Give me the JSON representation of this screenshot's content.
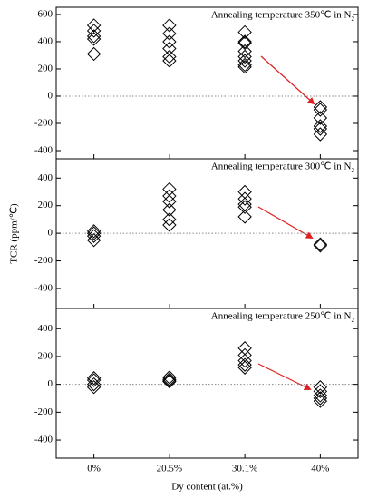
{
  "chart_data": [
    {
      "type": "scatter",
      "annotation": "Annealing temperature 350℃ in N2",
      "values": [
        [
          520,
          480,
          440,
          420,
          310
        ],
        [
          520,
          460,
          400,
          350,
          290,
          260
        ],
        [
          470,
          400,
          390,
          330,
          290,
          260,
          230,
          215
        ],
        [
          -80,
          -100,
          -160,
          -220,
          -240,
          -280
        ]
      ],
      "ylim": [
        -460,
        653
      ],
      "yticks": [
        -400,
        -200,
        0,
        200,
        400,
        600
      ],
      "reference_line": 0
    },
    {
      "type": "scatter",
      "annotation": "Annealing temperature 300℃ in N2",
      "ylabel": "TCR (ppm/℃)",
      "values": [
        [
          15,
          0,
          -20,
          -50
        ],
        [
          320,
          270,
          230,
          170,
          100,
          60
        ],
        [
          300,
          250,
          210,
          190,
          120
        ],
        [
          -80,
          -90
        ]
      ],
      "ylim": [
        -545,
        540
      ],
      "yticks": [
        -400,
        -200,
        0,
        200,
        400
      ],
      "reference_line": 0
    },
    {
      "type": "scatter",
      "annotation": "Annealing temperature 250℃ in N2",
      "xlabel": "Dy content (at.%)",
      "categories": [
        "0%",
        "20.5%",
        "30.1%",
        "40%"
      ],
      "values": [
        [
          45,
          30,
          0,
          -20
        ],
        [
          50,
          35,
          25,
          20
        ],
        [
          260,
          210,
          170,
          140,
          120
        ],
        [
          -20,
          -50,
          -80,
          -100,
          -120
        ]
      ],
      "ylim": [
        -530,
        545
      ],
      "yticks": [
        -400,
        -200,
        0,
        200,
        400
      ],
      "reference_line": 0
    }
  ]
}
